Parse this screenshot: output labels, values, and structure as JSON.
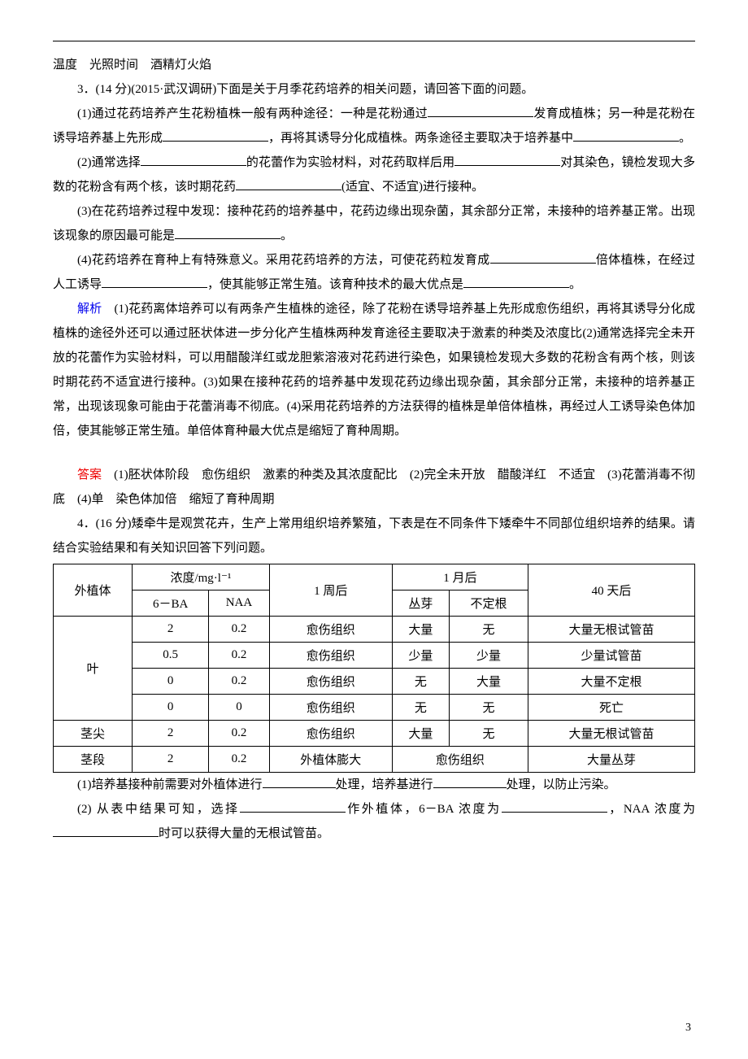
{
  "topline": "温度　光照时间　酒精灯火焰",
  "q3": {
    "head": "3．(14 分)(2015·武汉调研)下面是关于月季花药培养的相关问题，请回答下面的问题。",
    "p1a": "(1)通过花药培养产生花粉植株一般有两种途径：一种是花粉通过",
    "p1b": "发育成植株；另一种是花粉在诱导培养基上先形成",
    "p1c": "，再将其诱导分化成植株。两条途径主要取决于培养基中",
    "p1d": "。",
    "p2a": "(2)通常选择",
    "p2b": "的花蕾作为实验材料，对花药取样后用",
    "p2c": "对其染色，镜检发现大多数的花粉含有两个核，该时期花药",
    "p2d": "(适宜、不适宜)进行接种。",
    "p3a": "(3)在花药培养过程中发现：接种花药的培养基中，花药边缘出现杂菌，其余部分正常，未接种的培养基正常。出现该现象的原因最可能是",
    "p3b": "。",
    "p4a": "(4)花药培养在育种上有特殊意义。采用花药培养的方法，可使花药粒发育成",
    "p4b": "倍体植株，在经过人工诱导",
    "p4c": "，使其能够正常生殖。该育种技术的最大优点是",
    "p4d": "。",
    "analysis_label": "解析",
    "analysis": "　(1)花药离体培养可以有两条产生植株的途径，除了花粉在诱导培养基上先形成愈伤组织，再将其诱导分化成植株的途径外还可以通过胚状体进一步分化产生植株两种发育途径主要取决于激素的种类及浓度比(2)通常选择完全未开放的花蕾作为实验材料，可以用醋酸洋红或龙胆紫溶液对花药进行染色，如果镜检发现大多数的花粉含有两个核，则该时期花药不适宜进行接种。(3)如果在接种花药的培养基中发现花药边缘出现杂菌，其余部分正常，未接种的培养基正常，出现该现象可能由于花蕾消毒不彻底。(4)采用花药培养的方法获得的植株是单倍体植株，再经过人工诱导染色体加倍，使其能够正常生殖。单倍体育种最大优点是缩短了育种周期。",
    "answer_label": "答案",
    "answer": "　(1)胚状体阶段　愈伤组织　激素的种类及其浓度配比　(2)完全未开放　醋酸洋红　不适宜　(3)花蕾消毒不彻底　(4)单　染色体加倍　缩短了育种周期"
  },
  "q4": {
    "head": "4．(16 分)矮牵牛是观赏花卉，生产上常用组织培养繁殖，下表是在不同条件下矮牵牛不同部位组织培养的结果。请结合实验结果和有关知识回答下列问题。",
    "p1a": "(1)培养基接种前需要对外植体进行",
    "p1b": "处理，培养基进行",
    "p1c": "处理，以防止污染。",
    "p2a": "(2) 从表中结果可知，选择",
    "p2b": "作外植体，6－BA 浓度为",
    "p2c": "，NAA 浓度为",
    "p2d": "时可以获得大量的无根试管苗。"
  },
  "table": {
    "h_explant": "外植体",
    "h_conc": "浓度/mg·l⁻¹",
    "h_6ba": "6－BA",
    "h_naa": "NAA",
    "h_1week": "1 周后",
    "h_1month": "1 月后",
    "h_congya": "丛芽",
    "h_budinggen": "不定根",
    "h_40day": "40 天后",
    "rows": [
      {
        "explant": "叶",
        "ba": "2",
        "naa": "0.2",
        "w1": "愈伤组织",
        "cy": "大量",
        "bdg": "无",
        "d40": "大量无根试管苗"
      },
      {
        "ba": "0.5",
        "naa": "0.2",
        "w1": "愈伤组织",
        "cy": "少量",
        "bdg": "少量",
        "d40": "少量试管苗"
      },
      {
        "ba": "0",
        "naa": "0.2",
        "w1": "愈伤组织",
        "cy": "无",
        "bdg": "大量",
        "d40": "大量不定根"
      },
      {
        "ba": "0",
        "naa": "0",
        "w1": "愈伤组织",
        "cy": "无",
        "bdg": "无",
        "d40": "死亡"
      },
      {
        "explant": "茎尖",
        "ba": "2",
        "naa": "0.2",
        "w1": "愈伤组织",
        "cy": "大量",
        "bdg": "无",
        "d40": "大量无根试管苗"
      },
      {
        "explant": "茎段",
        "ba": "2",
        "naa": "0.2",
        "w1": "外植体膨大",
        "merged": "愈伤组织",
        "d40": "大量丛芽"
      }
    ]
  },
  "pagenum": "3"
}
